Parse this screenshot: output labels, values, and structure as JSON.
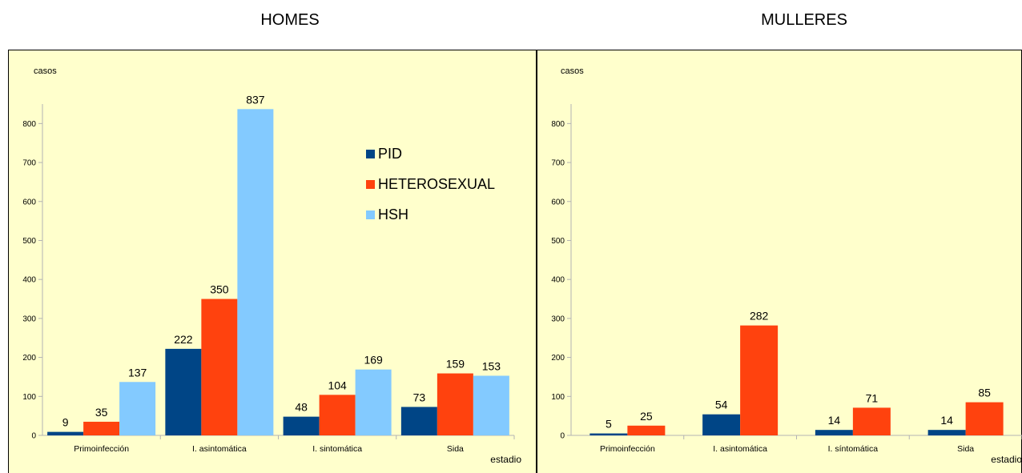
{
  "chart_data": [
    {
      "type": "bar",
      "title": "HOMES",
      "ylabel": "casos",
      "xlabel": "estadio",
      "ylim": [
        0,
        850
      ],
      "yticks": [
        0,
        100,
        200,
        300,
        400,
        500,
        600,
        700,
        800
      ],
      "categories": [
        "Primoinfección",
        "I. asintomática",
        "I. sintomática",
        "Sida"
      ],
      "series": [
        {
          "name": "PID",
          "color": "#004586",
          "values": [
            9,
            222,
            48,
            73
          ]
        },
        {
          "name": "HETEROSEXUAL",
          "color": "#ff420e",
          "values": [
            35,
            350,
            104,
            159
          ]
        },
        {
          "name": "HSH",
          "color": "#83caff",
          "values": [
            137,
            837,
            169,
            153
          ]
        }
      ],
      "legend": "top-right",
      "grid": false,
      "background": "#ffffcc"
    },
    {
      "type": "bar",
      "title": "MULLERES",
      "ylabel": "casos",
      "xlabel": "estadio",
      "ylim": [
        0,
        850
      ],
      "yticks": [
        0,
        100,
        200,
        300,
        400,
        500,
        600,
        700,
        800
      ],
      "categories": [
        "Primoinfección",
        "I. asintomática",
        "I. síntomática",
        "Sida"
      ],
      "series": [
        {
          "name": "PID",
          "color": "#004586",
          "values": [
            5,
            54,
            14,
            14
          ]
        },
        {
          "name": "HETEROSEXUAL",
          "color": "#ff420e",
          "values": [
            25,
            282,
            71,
            85
          ]
        }
      ],
      "legend": "none",
      "grid": false,
      "background": "#ffffcc"
    }
  ]
}
